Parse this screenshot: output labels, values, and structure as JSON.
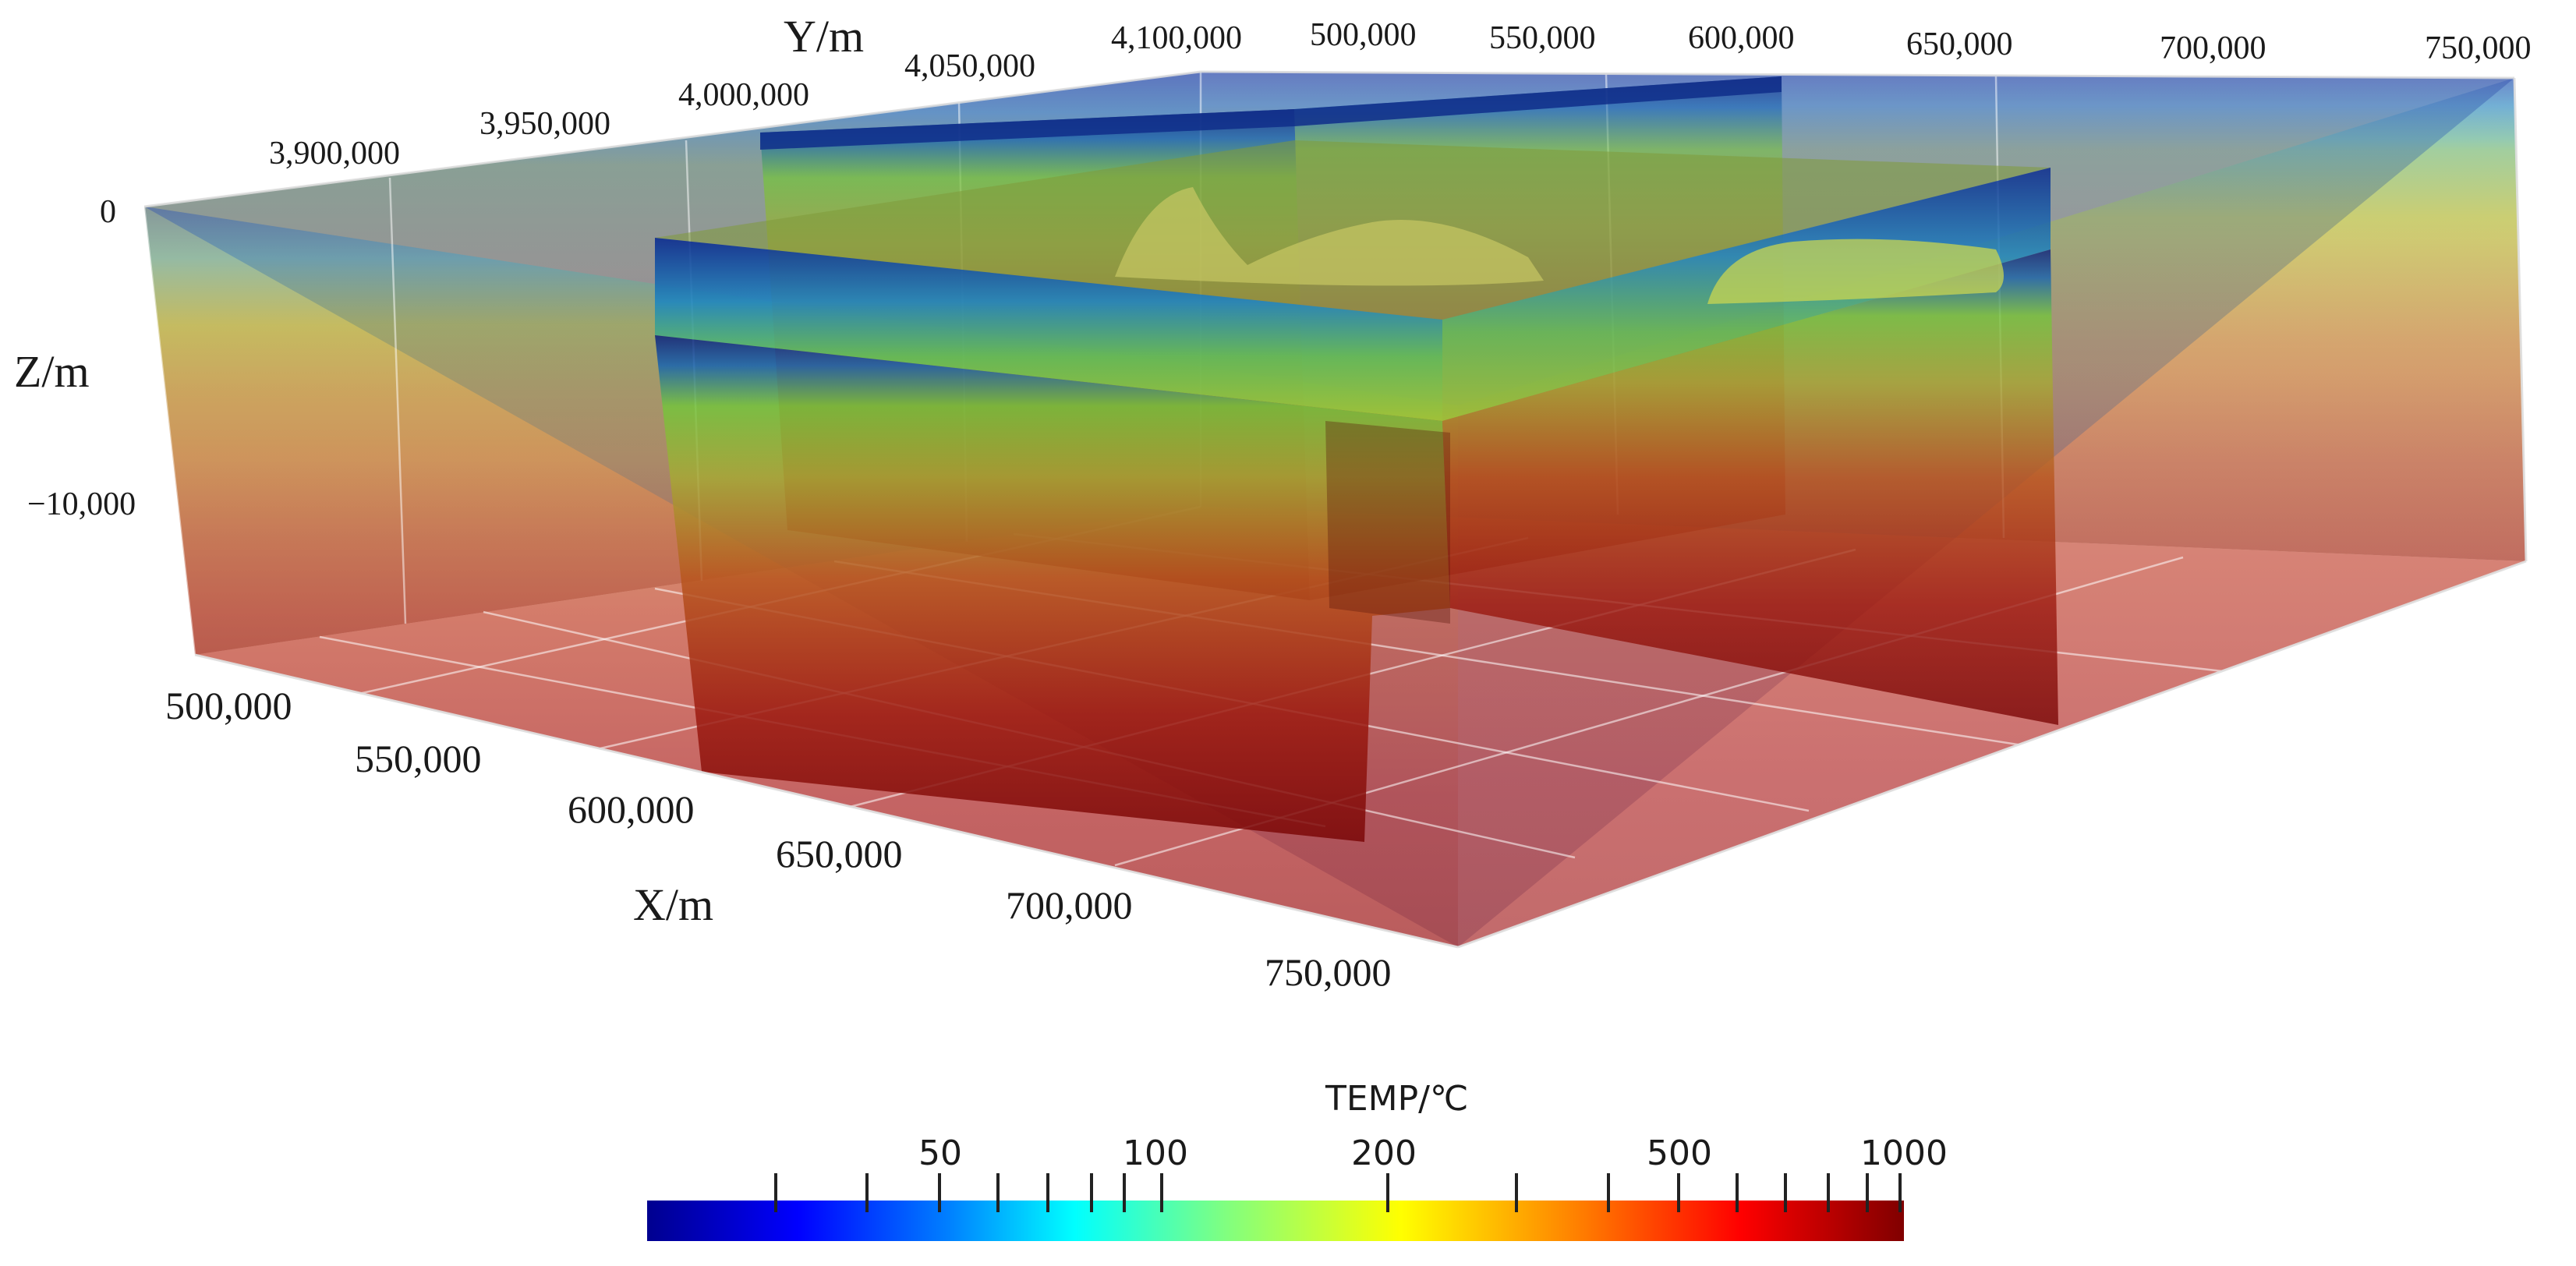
{
  "figure": {
    "y_axis": {
      "title": "Y/m",
      "ticks": [
        "3,900,000",
        "3,950,000",
        "4,000,000",
        "4,050,000",
        "4,100,000"
      ]
    },
    "x_axis": {
      "title": "X/m",
      "ticks_back": [
        "500,000",
        "550,000",
        "600,000",
        "650,000",
        "700,000",
        "750,000"
      ],
      "ticks_front": [
        "500,000",
        "550,000",
        "600,000",
        "650,000",
        "700,000",
        "750,000"
      ]
    },
    "z_axis": {
      "title": "Z/m",
      "ticks": [
        "0",
        "−10,000"
      ]
    }
  },
  "colorbar": {
    "title": "TEMP/℃",
    "scale": "log",
    "labels": [
      "50",
      "100",
      "200",
      "500",
      "1000"
    ],
    "colors": [
      "#00008f",
      "#0000ff",
      "#0080ff",
      "#00ffff",
      "#80ff80",
      "#ffff00",
      "#ff8000",
      "#ff0000",
      "#800000"
    ]
  }
}
